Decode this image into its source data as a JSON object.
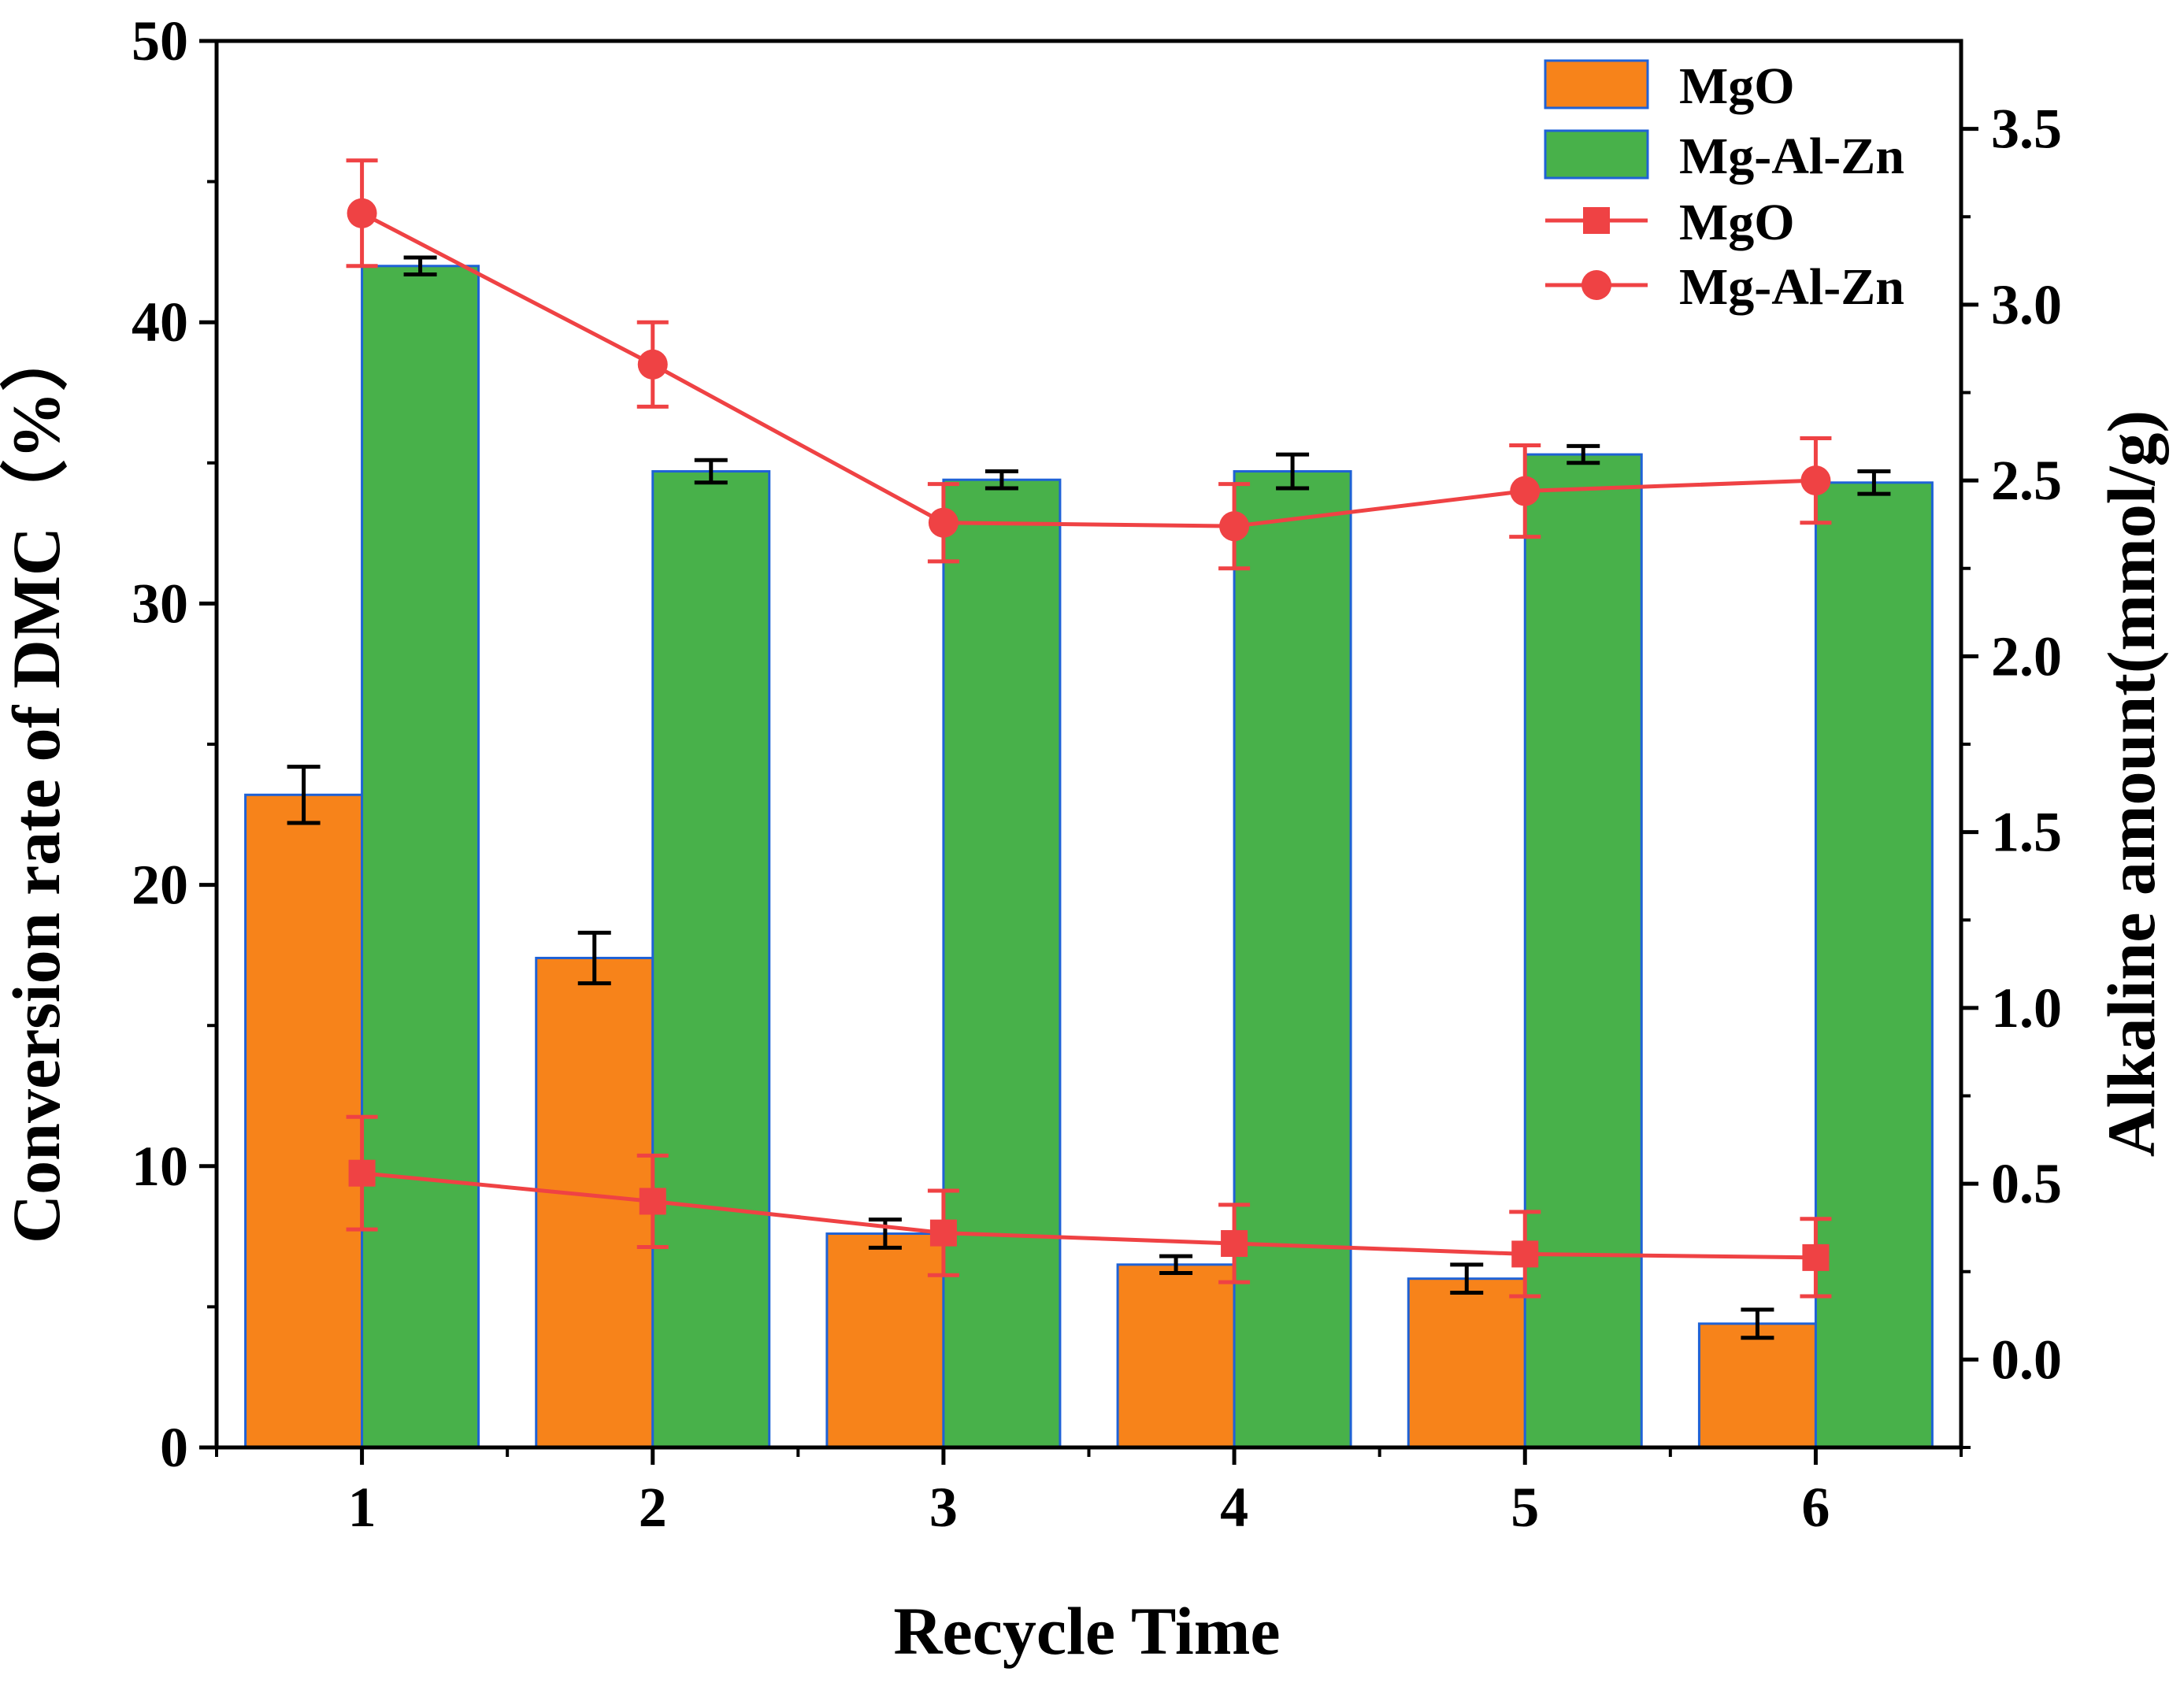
{
  "chart_data": {
    "type": "bar",
    "title": "",
    "xlabel": "Recycle Time",
    "ylabel": "Conversion rate of DMC（%）",
    "y2label": "Alkaline amount(mmol/g)",
    "categories": [
      "1",
      "2",
      "3",
      "4",
      "5",
      "6"
    ],
    "ylim": [
      0,
      50
    ],
    "yticks": [
      "0",
      "10",
      "20",
      "30",
      "40",
      "50"
    ],
    "y2lim": [
      -0.25,
      3.75
    ],
    "y2ticks": [
      "0.0",
      "0.5",
      "1.0",
      "1.5",
      "2.0",
      "2.5",
      "3.0",
      "3.5"
    ],
    "bar_series": [
      {
        "name": "MgO",
        "color": "#f7831a",
        "edge": "#1f62d6",
        "values": [
          23.2,
          17.4,
          7.6,
          6.5,
          6.0,
          4.4
        ],
        "errors": [
          1.0,
          0.9,
          0.5,
          0.3,
          0.5,
          0.5
        ]
      },
      {
        "name": "Mg-Al-Zn",
        "color": "#48b14a",
        "edge": "#1f62d6",
        "values": [
          42.0,
          34.7,
          34.4,
          34.7,
          35.3,
          34.3
        ],
        "errors": [
          0.3,
          0.4,
          0.3,
          0.6,
          0.3,
          0.4
        ]
      }
    ],
    "line_series": [
      {
        "name": "MgO",
        "marker": "square",
        "color": "#ef4244",
        "values": [
          0.53,
          0.45,
          0.36,
          0.33,
          0.3,
          0.29
        ],
        "errors": [
          0.16,
          0.13,
          0.12,
          0.11,
          0.12,
          0.11
        ]
      },
      {
        "name": "Mg-Al-Zn",
        "marker": "circle",
        "color": "#ef4244",
        "values": [
          3.26,
          2.83,
          2.38,
          2.37,
          2.47,
          2.5
        ],
        "errors": [
          0.15,
          0.12,
          0.11,
          0.12,
          0.13,
          0.12
        ]
      }
    ],
    "legend": {
      "position": "top-right",
      "entries": [
        "MgO",
        "Mg-Al-Zn",
        "MgO",
        "Mg-Al-Zn"
      ]
    }
  }
}
